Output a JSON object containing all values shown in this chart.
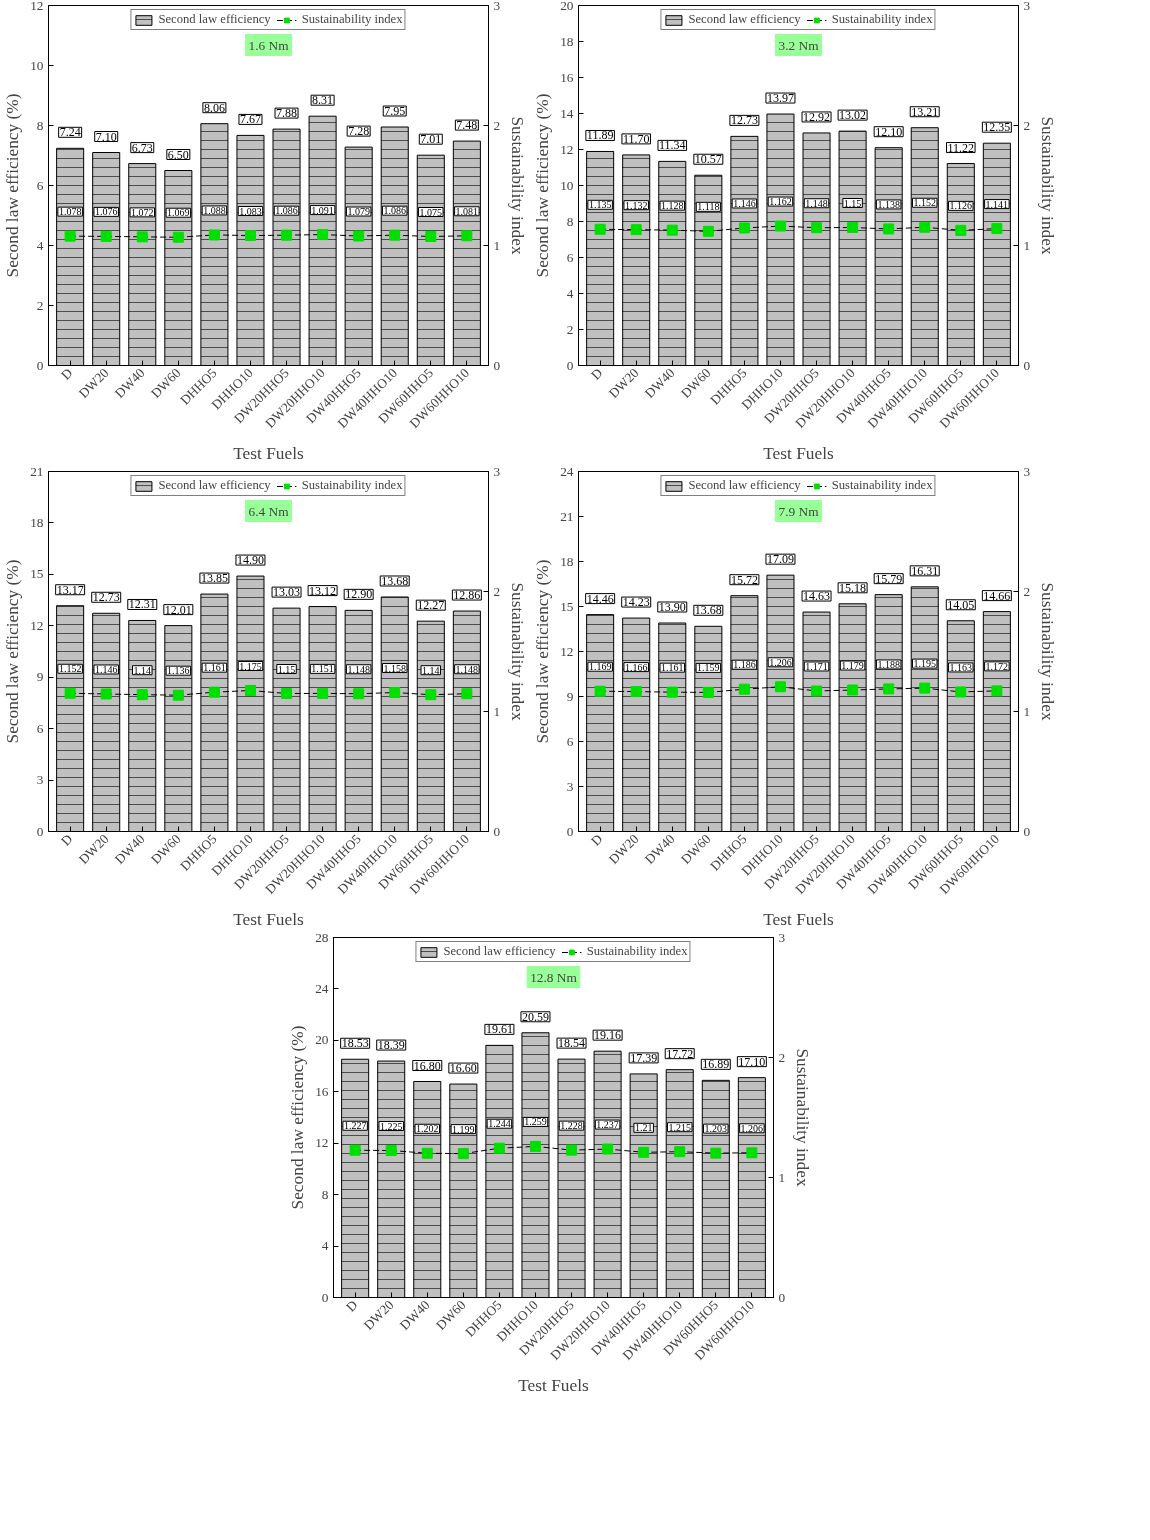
{
  "chart_data": [
    {
      "type": "bar",
      "categories": [
        "D",
        "DW20",
        "DW40",
        "DW60",
        "DHHO5",
        "DHHO10",
        "DW20HHO5",
        "DW20HHO10",
        "DW40HHO5",
        "DW40HHO10",
        "DW60HHO5",
        "DW60HHO10"
      ],
      "xlabel": "Test Fuels",
      "ylabel": "Second law efficiency (%)",
      "y2label": "Sustainability index",
      "ylim": [
        0,
        12
      ],
      "yticks": [
        0,
        2,
        4,
        6,
        8,
        10,
        12
      ],
      "y2lim": [
        0,
        3
      ],
      "y2ticks": [
        0,
        1,
        2,
        3
      ],
      "legend": "top",
      "grid": false,
      "annotations": [
        "1.6 Nm"
      ],
      "series": [
        {
          "name": "Second law efficiency",
          "type": "bar",
          "color": "#c0c0c0",
          "values": [
            7.24,
            7.1,
            6.73,
            6.5,
            8.06,
            7.67,
            7.88,
            8.31,
            7.28,
            7.95,
            7.01,
            7.48
          ],
          "value_labels": [
            "7.24",
            "7.10",
            "6.73",
            "6.50",
            "8.06",
            "7.67",
            "7.88",
            "8.31",
            "7.28",
            "7.95",
            "7.01",
            "7.48"
          ]
        },
        {
          "name": "Sustainability index",
          "type": "line",
          "axis": "y2",
          "color": "#00e000",
          "marker": "square",
          "line_style": "dashed",
          "values": [
            1.078,
            1.076,
            1.072,
            1.069,
            1.088,
            1.083,
            1.086,
            1.091,
            1.079,
            1.086,
            1.075,
            1.081
          ],
          "value_labels": [
            "1.078",
            "1.076",
            "1.072",
            "1.069",
            "1.088",
            "1.083",
            "1.086",
            "1.091",
            "1.079",
            "1.086",
            "1.075",
            "1.081"
          ]
        }
      ]
    },
    {
      "type": "bar",
      "categories": [
        "D",
        "DW20",
        "DW40",
        "DW60",
        "DHHO5",
        "DHHO10",
        "DW20HHO5",
        "DW20HHO10",
        "DW40HHO5",
        "DW40HHO10",
        "DW60HHO5",
        "DW60HHO10"
      ],
      "xlabel": "Test Fuels",
      "ylabel": "Second law efficiency (%)",
      "y2label": "Sustainability index",
      "ylim": [
        0,
        20
      ],
      "yticks": [
        0,
        2,
        4,
        6,
        8,
        10,
        12,
        14,
        16,
        18,
        20
      ],
      "y2lim": [
        0,
        3
      ],
      "y2ticks": [
        0,
        1,
        2,
        3
      ],
      "legend": "top",
      "grid": false,
      "annotations": [
        "3.2 Nm"
      ],
      "series": [
        {
          "name": "Second law efficiency",
          "type": "bar",
          "color": "#c0c0c0",
          "values": [
            11.89,
            11.7,
            11.34,
            10.57,
            12.73,
            13.97,
            12.92,
            13.02,
            12.1,
            13.21,
            11.22,
            12.35
          ],
          "value_labels": [
            "11.89",
            "11.70",
            "11.34",
            "10.57",
            "12.73",
            "13.97",
            "12.92",
            "13.02",
            "12.10",
            "13.21",
            "11.22",
            "12.35"
          ]
        },
        {
          "name": "Sustainability index",
          "type": "line",
          "axis": "y2",
          "color": "#00e000",
          "marker": "square",
          "line_style": "dashed",
          "values": [
            1.135,
            1.132,
            1.128,
            1.118,
            1.146,
            1.162,
            1.148,
            1.15,
            1.138,
            1.152,
            1.126,
            1.141
          ],
          "value_labels": [
            "1.135",
            "1.132",
            "1.128",
            "1.118",
            "1.146",
            "1.162",
            "1.148",
            "1.15",
            "1.138",
            "1.152",
            "1.126",
            "1.141"
          ]
        }
      ]
    },
    {
      "type": "bar",
      "categories": [
        "D",
        "DW20",
        "DW40",
        "DW60",
        "DHHO5",
        "DHHO10",
        "DW20HHO5",
        "DW20HHO10",
        "DW40HHO5",
        "DW40HHO10",
        "DW60HHO5",
        "DW60HHO10"
      ],
      "xlabel": "Test Fuels",
      "ylabel": "Second law efficiency (%)",
      "y2label": "Sustainability index",
      "ylim": [
        0,
        21
      ],
      "yticks": [
        0,
        3,
        6,
        9,
        12,
        15,
        18,
        21
      ],
      "y2lim": [
        0,
        3
      ],
      "y2ticks": [
        0,
        1,
        2,
        3
      ],
      "legend": "top",
      "grid": false,
      "annotations": [
        "6.4 Nm"
      ],
      "series": [
        {
          "name": "Second law efficiency",
          "type": "bar",
          "color": "#c0c0c0",
          "values": [
            13.17,
            12.73,
            12.31,
            12.01,
            13.85,
            14.9,
            13.03,
            13.12,
            12.9,
            13.68,
            12.27,
            12.86
          ],
          "value_labels": [
            "13.17",
            "12.73",
            "12.31",
            "12.01",
            "13.85",
            "14.90",
            "13.03",
            "13.12",
            "12.90",
            "13.68",
            "12.27",
            "12.86"
          ]
        },
        {
          "name": "Sustainability index",
          "type": "line",
          "axis": "y2",
          "color": "#00e000",
          "marker": "square",
          "line_style": "dashed",
          "values": [
            1.152,
            1.146,
            1.14,
            1.136,
            1.161,
            1.175,
            1.15,
            1.151,
            1.148,
            1.158,
            1.14,
            1.148
          ],
          "value_labels": [
            "1.152",
            "1.146",
            "1.14",
            "1.136",
            "1.161",
            "1.175",
            "1.15",
            "1.151",
            "1.148",
            "1.158",
            "1.14",
            "1.148"
          ]
        }
      ]
    },
    {
      "type": "bar",
      "categories": [
        "D",
        "DW20",
        "DW40",
        "DW60",
        "DHHO5",
        "DHHO10",
        "DW20HHO5",
        "DW20HHO10",
        "DW40HHO5",
        "DW40HHO10",
        "DW60HHO5",
        "DW60HHO10"
      ],
      "xlabel": "Test Fuels",
      "ylabel": "Second law efficiency (%)",
      "y2label": "Sustainability index",
      "ylim": [
        0,
        24
      ],
      "yticks": [
        0,
        3,
        6,
        9,
        12,
        15,
        18,
        21,
        24
      ],
      "y2lim": [
        0,
        3
      ],
      "y2ticks": [
        0,
        1,
        2,
        3
      ],
      "legend": "top",
      "grid": false,
      "annotations": [
        "7.9 Nm"
      ],
      "series": [
        {
          "name": "Second law efficiency",
          "type": "bar",
          "color": "#c0c0c0",
          "values": [
            14.46,
            14.23,
            13.9,
            13.68,
            15.72,
            17.09,
            14.63,
            15.18,
            15.79,
            16.31,
            14.05,
            14.66
          ],
          "value_labels": [
            "14.46",
            "14.23",
            "13.90",
            "13.68",
            "15.72",
            "17.09",
            "14.63",
            "15.18",
            "15.79",
            "16.31",
            "14.05",
            "14.66"
          ]
        },
        {
          "name": "Sustainability index",
          "type": "line",
          "axis": "y2",
          "color": "#00e000",
          "marker": "square",
          "line_style": "dashed",
          "values": [
            1.169,
            1.166,
            1.161,
            1.159,
            1.186,
            1.206,
            1.171,
            1.179,
            1.188,
            1.195,
            1.163,
            1.172
          ],
          "value_labels": [
            "1.169",
            "1.166",
            "1.161",
            "1.159",
            "1.186",
            "1.206",
            "1.171",
            "1.179",
            "1.188",
            "1.195",
            "1.163",
            "1.172"
          ]
        }
      ]
    },
    {
      "type": "bar",
      "categories": [
        "D",
        "DW20",
        "DW40",
        "DW60",
        "DHHO5",
        "DHHO10",
        "DW20HHO5",
        "DW20HHO10",
        "DW40HHO5",
        "DW40HHO10",
        "DW60HHO5",
        "DW60HHO10"
      ],
      "xlabel": "Test Fuels",
      "ylabel": "Second law efficiency (%)",
      "y2label": "Sustainability index",
      "ylim": [
        0,
        28
      ],
      "yticks": [
        0,
        4,
        8,
        12,
        16,
        20,
        24,
        28
      ],
      "y2lim": [
        0,
        3
      ],
      "y2ticks": [
        0,
        1,
        2,
        3
      ],
      "legend": "top",
      "grid": false,
      "annotations": [
        "12.8 Nm"
      ],
      "series": [
        {
          "name": "Second law efficiency",
          "type": "bar",
          "color": "#c0c0c0",
          "values": [
            18.53,
            18.39,
            16.8,
            16.6,
            19.61,
            20.59,
            18.54,
            19.16,
            17.39,
            17.72,
            16.89,
            17.1
          ],
          "value_labels": [
            "18.53",
            "18.39",
            "16.80",
            "16.60",
            "19.61",
            "20.59",
            "18.54",
            "19.16",
            "17.39",
            "17.72",
            "16.89",
            "17.10"
          ]
        },
        {
          "name": "Sustainability index",
          "type": "line",
          "axis": "y2",
          "color": "#00e000",
          "marker": "square",
          "line_style": "dashed",
          "values": [
            1.227,
            1.225,
            1.202,
            1.199,
            1.244,
            1.259,
            1.228,
            1.237,
            1.21,
            1.215,
            1.203,
            1.206
          ],
          "value_labels": [
            "1.227",
            "1.225",
            "1.202",
            "1.199",
            "1.244",
            "1.259",
            "1.228",
            "1.237",
            "1.21",
            "1.215",
            "1.203",
            "1.206"
          ]
        }
      ]
    }
  ]
}
